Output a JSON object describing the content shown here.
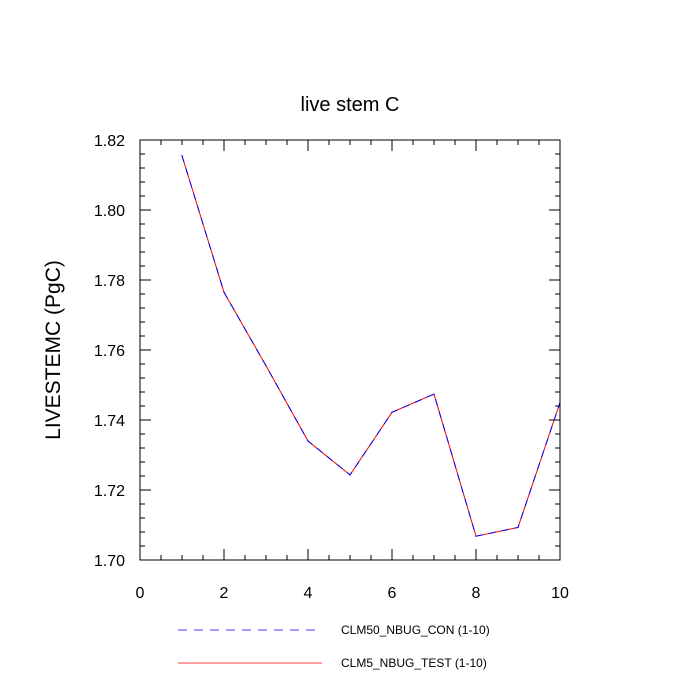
{
  "chart_data": {
    "type": "line",
    "title": "live stem C",
    "xlabel": "",
    "ylabel": "LIVESTEMC  (PgC)",
    "xlim": [
      0,
      10
    ],
    "ylim": [
      1.7,
      1.82
    ],
    "x_ticks": [
      0,
      2,
      4,
      6,
      8,
      10
    ],
    "y_ticks": [
      1.7,
      1.72,
      1.74,
      1.76,
      1.78,
      1.8,
      1.82
    ],
    "x_tick_labels": [
      "0",
      "2",
      "4",
      "6",
      "8",
      "10"
    ],
    "y_tick_labels": [
      "1.70",
      "1.72",
      "1.74",
      "1.76",
      "1.78",
      "1.80",
      "1.82"
    ],
    "grid": false,
    "legend_position": "bottom",
    "x": [
      1,
      2,
      3,
      4,
      5,
      6,
      7,
      8,
      9,
      10
    ],
    "series": [
      {
        "name": "CLM50_NBUG_CON (1-10)",
        "color": "#0000ff",
        "style": "dashed",
        "values": [
          1.8155,
          1.7765,
          1.7555,
          1.734,
          1.7243,
          1.7422,
          1.7474,
          1.7068,
          1.7093,
          1.745
        ]
      },
      {
        "name": "CLM5_NBUG_TEST (1-10)",
        "color": "#ff0000",
        "style": "solid",
        "values": [
          1.8155,
          1.7765,
          1.7555,
          1.734,
          1.7243,
          1.7422,
          1.7474,
          1.7068,
          1.7093,
          1.745
        ]
      }
    ]
  }
}
